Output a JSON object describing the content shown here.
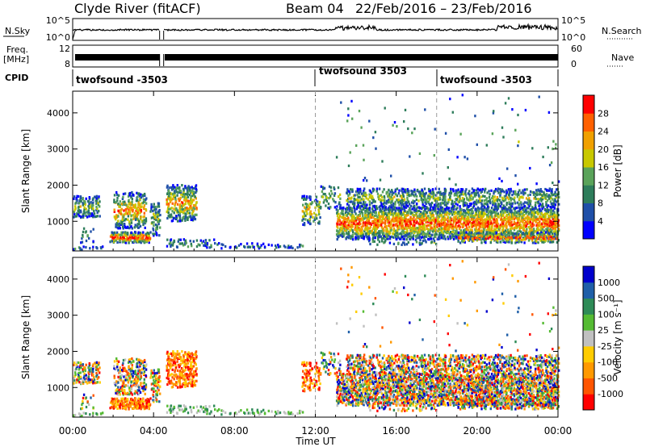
{
  "header": {
    "station": "Clyde River (fitACF)",
    "beam": "Beam 04",
    "date_range": "22/Feb/2016 – 23/Feb/2016"
  },
  "strips": {
    "nsky_label": "N.Sky",
    "nsky_ticks": [
      "10^5",
      "10^0"
    ],
    "nsearch_label": "N.Search",
    "nsearch_ticks": [
      "10^5",
      "10^0"
    ],
    "freq_label_1": "Freq.",
    "freq_label_2": "[MHz]",
    "freq_ticks": [
      "12",
      "8"
    ],
    "nave_label": "Nave",
    "nave_ticks": [
      "60",
      "0"
    ],
    "cpid_label": "CPID",
    "cpid_segments": [
      {
        "label": "twofsound -3503",
        "start_hour": 0
      },
      {
        "label": "twofsound 3503",
        "start_hour": 12
      },
      {
        "label": "twofsound -3503",
        "start_hour": 18
      }
    ]
  },
  "colors": {
    "power_scale": [
      "#0000ff",
      "#1f4fa8",
      "#2e7d5b",
      "#5aa35a",
      "#c8c800",
      "#f0a000",
      "#ff6000",
      "#ff0000"
    ],
    "velocity_scale": [
      "#ff0000",
      "#ff5500",
      "#ff9900",
      "#ffcc00",
      "#c0c0c0",
      "#55bb33",
      "#2e8b57",
      "#1f5fa8",
      "#0000cc"
    ]
  },
  "chart_data": [
    {
      "type": "heatmap",
      "panel": "power",
      "ylabel": "Slant Range [km]",
      "xlabel": "Time UT",
      "xlim": [
        0,
        24
      ],
      "ylim": [
        180,
        4600
      ],
      "yticks": [
        1000,
        2000,
        3000,
        4000
      ],
      "colorbar_label": "Power [dB]",
      "colorbar_ticks": [
        "4",
        "8",
        "12",
        "16",
        "20",
        "24",
        "28"
      ],
      "colorbar_range": [
        0,
        30
      ]
    },
    {
      "type": "heatmap",
      "panel": "velocity",
      "ylabel": "Slant Range [km]",
      "xlabel": "Time UT",
      "xlim": [
        0,
        24
      ],
      "ylim": [
        180,
        4600
      ],
      "yticks": [
        1000,
        2000,
        3000,
        4000
      ],
      "colorbar_label": "Velocity [m s⁻¹]",
      "colorbar_ticks": [
        "1000",
        "500",
        "100",
        "25",
        "-25",
        "-100",
        "-500",
        "-1000"
      ]
    }
  ],
  "xaxis": {
    "ticks": [
      "00:00",
      "04:00",
      "08:00",
      "12:00",
      "16:00",
      "20:00",
      "00:00"
    ],
    "label": "Time UT"
  }
}
